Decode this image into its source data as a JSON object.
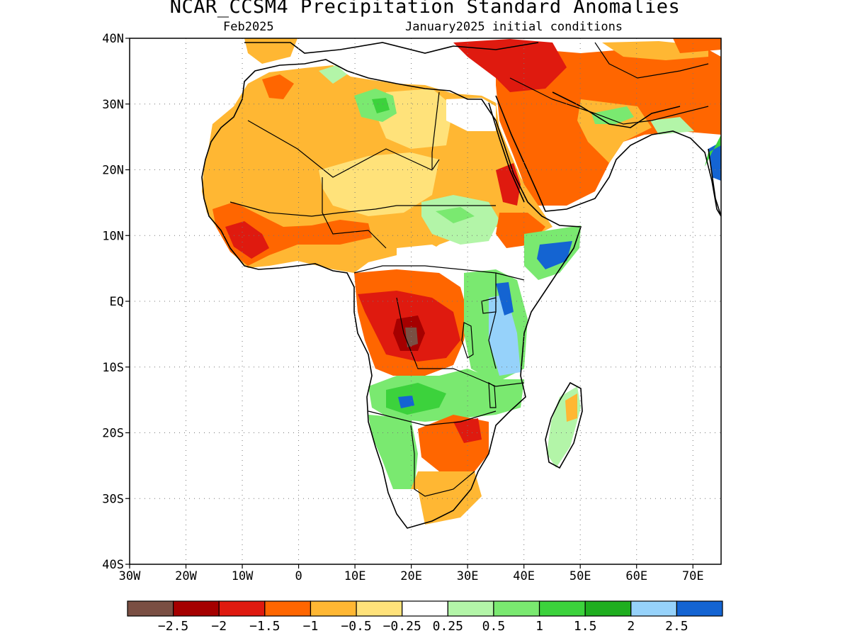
{
  "header": {
    "title": "NCAR_CCSM4 Precipitation Standard Anomalies",
    "valid_month": "Feb2025",
    "init": "January2025 initial conditions"
  },
  "map": {
    "lon_range": [
      -30,
      75
    ],
    "lat_range": [
      -40,
      40
    ],
    "lon_ticks": [
      {
        "value": -30,
        "label": "30W"
      },
      {
        "value": -20,
        "label": "20W"
      },
      {
        "value": -10,
        "label": "10W"
      },
      {
        "value": 0,
        "label": "0"
      },
      {
        "value": 10,
        "label": "10E"
      },
      {
        "value": 20,
        "label": "20E"
      },
      {
        "value": 30,
        "label": "30E"
      },
      {
        "value": 40,
        "label": "40E"
      },
      {
        "value": 50,
        "label": "50E"
      },
      {
        "value": 60,
        "label": "60E"
      },
      {
        "value": 70,
        "label": "70E"
      }
    ],
    "lat_ticks": [
      {
        "value": 40,
        "label": "40N"
      },
      {
        "value": 30,
        "label": "30N"
      },
      {
        "value": 20,
        "label": "20N"
      },
      {
        "value": 10,
        "label": "10N"
      },
      {
        "value": 0,
        "label": "EQ"
      },
      {
        "value": -10,
        "label": "10S"
      },
      {
        "value": -20,
        "label": "20S"
      },
      {
        "value": -30,
        "label": "30S"
      },
      {
        "value": -40,
        "label": "40S"
      }
    ],
    "gridlines": "dotted"
  },
  "colorbar": {
    "colors": [
      "#7a4f43",
      "#a50000",
      "#df1a0f",
      "#ff6600",
      "#ffb733",
      "#ffe27a",
      "#ffffff",
      "#b3f5a8",
      "#7ae970",
      "#3cd23c",
      "#1fae1f",
      "#96d2fa",
      "#1464d2"
    ],
    "labels": [
      "−2.5",
      "−2",
      "−1.5",
      "−1",
      "−0.5",
      "−0.25",
      "0.25",
      "0.5",
      "1",
      "1.5",
      "2",
      "2.5"
    ]
  }
}
